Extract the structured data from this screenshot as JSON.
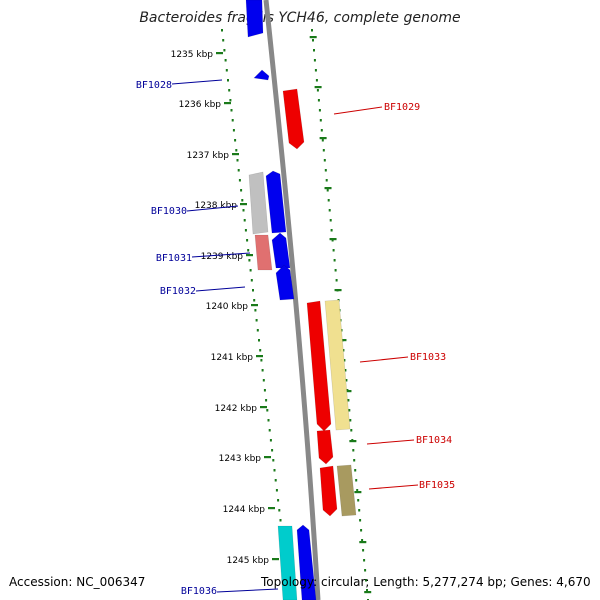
{
  "title": "Bacteroides fragilis YCH46, complete genome",
  "accession_text": "Accession: NC_006347",
  "summary_text": "Topology: circular; Length: 5,277,274 bp; Genes: 4,670",
  "colors": {
    "ruler": "#1a7a1a",
    "backbone": "#888888",
    "gene_blue": "#0000ee",
    "gene_red": "#ee0000",
    "gene_gray": "#c0c0c0",
    "gene_salmon": "#e07070",
    "gene_yellow": "#f0e090",
    "gene_olive": "#a89a60",
    "gene_cyan": "#00cccc",
    "label_blue": "#000099",
    "label_red": "#cc0000"
  },
  "ticks": [
    "1235 kbp",
    "1236 kbp",
    "1237 kbp",
    "1238 kbp",
    "1239 kbp",
    "1240 kbp",
    "1241 kbp",
    "1242 kbp",
    "1243 kbp",
    "1244 kbp",
    "1245 kbp"
  ],
  "genes": [
    {
      "id": "top-blue",
      "label": "",
      "color": "gene_blue"
    },
    {
      "id": "BF1028",
      "label": "BF1028",
      "color": "gene_blue"
    },
    {
      "id": "BF1029",
      "label": "BF1029",
      "color": "gene_red"
    },
    {
      "id": "BF1030-gray",
      "label": "",
      "color": "gene_gray"
    },
    {
      "id": "BF1030",
      "label": "BF1030",
      "color": "gene_blue"
    },
    {
      "id": "BF1031-salmon",
      "label": "",
      "color": "gene_salmon"
    },
    {
      "id": "BF1031",
      "label": "BF1031",
      "color": "gene_blue"
    },
    {
      "id": "BF1032",
      "label": "BF1032",
      "color": "gene_blue"
    },
    {
      "id": "BF1033",
      "label": "BF1033",
      "color": "gene_red"
    },
    {
      "id": "BF1033-yellow",
      "label": "",
      "color": "gene_yellow"
    },
    {
      "id": "BF1034",
      "label": "BF1034",
      "color": "gene_red"
    },
    {
      "id": "BF1035",
      "label": "BF1035",
      "color": "gene_red"
    },
    {
      "id": "BF1035-olive",
      "label": "",
      "color": "gene_olive"
    },
    {
      "id": "BF1036-cyan",
      "label": "",
      "color": "gene_cyan"
    },
    {
      "id": "BF1036",
      "label": "BF1036",
      "color": "gene_blue"
    }
  ]
}
